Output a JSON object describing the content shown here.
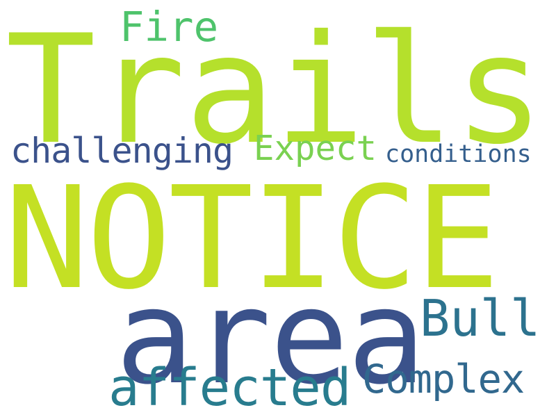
{
  "word_cloud": {
    "words": [
      {
        "id": "trails",
        "text": "Trails",
        "color": "#b5e02c"
      },
      {
        "id": "notice",
        "text": "NOTICE",
        "color": "#c4e024"
      },
      {
        "id": "area",
        "text": "area",
        "color": "#3b528b"
      },
      {
        "id": "fire",
        "text": "Fire",
        "color": "#4ec36b"
      },
      {
        "id": "challenging",
        "text": "challenging",
        "color": "#3b528b"
      },
      {
        "id": "expect",
        "text": "Expect",
        "color": "#7ad151"
      },
      {
        "id": "conditions",
        "text": "conditions",
        "color": "#355f8d"
      },
      {
        "id": "bull",
        "text": "Bull",
        "color": "#2c728e"
      },
      {
        "id": "affected",
        "text": "affected",
        "color": "#287c8e"
      },
      {
        "id": "complex",
        "text": "Complex",
        "color": "#31688e"
      }
    ]
  }
}
